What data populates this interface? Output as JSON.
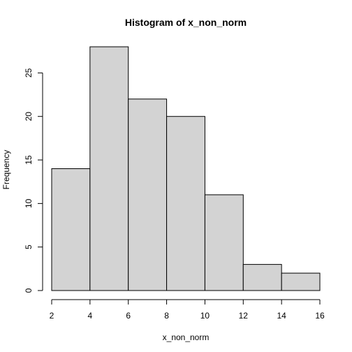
{
  "chart_data": {
    "type": "bar",
    "subtype": "histogram",
    "title": "Histogram of x_non_norm",
    "xlabel": "x_non_norm",
    "ylabel": "Frequency",
    "bins": [
      {
        "start": 2,
        "end": 4,
        "count": 14
      },
      {
        "start": 4,
        "end": 6,
        "count": 28
      },
      {
        "start": 6,
        "end": 8,
        "count": 22
      },
      {
        "start": 8,
        "end": 10,
        "count": 20
      },
      {
        "start": 10,
        "end": 12,
        "count": 11
      },
      {
        "start": 12,
        "end": 14,
        "count": 3
      },
      {
        "start": 14,
        "end": 16,
        "count": 2
      }
    ],
    "xlim": [
      2,
      16
    ],
    "ylim": [
      0,
      28
    ],
    "x_ticks": [
      2,
      4,
      6,
      8,
      10,
      12,
      14,
      16
    ],
    "y_ticks": [
      0,
      5,
      10,
      15,
      20,
      25
    ],
    "grid": false,
    "bar_fill": "#d3d3d3",
    "bar_stroke": "#000000"
  }
}
